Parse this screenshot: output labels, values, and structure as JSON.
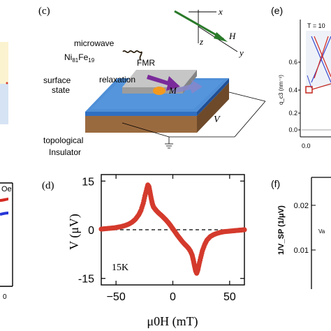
{
  "panel_c": {
    "label": "(c)",
    "microwave": "microwave",
    "ni_base": "Ni",
    "ni_sub1": "81",
    "fe_base": "Fe",
    "fe_sub": "19",
    "fmr": "FMR",
    "m": "M",
    "relaxation": "relaxation",
    "surface": "surface",
    "state": "state",
    "topological": "topological",
    "insulator": "Insulator",
    "x": "x",
    "y": "y",
    "z": "z",
    "h": "H",
    "v": "V"
  },
  "panel_e": {
    "label": "(e)",
    "temp": "T = 10",
    "ylabel": "q_c3 (nm⁻¹)",
    "yticks": [
      "0.6",
      "0.4",
      "0.2",
      "0.0"
    ],
    "xtick": "0.0"
  },
  "panel_f": {
    "label": "(f)",
    "ylabel": "1/V_SP (1/μV)",
    "yticks": [
      "0.02",
      "0.01"
    ],
    "inset": "Va"
  },
  "panel_left": {
    "oe": "Oe",
    "xtick": "0"
  },
  "panel_d": {
    "label": "(d)",
    "temperature": "15K",
    "ylabel": "V (μV)",
    "xlabel": "μ₀H (mT)",
    "marker_color": "#d43a2c"
  },
  "chart_data": {
    "type": "scatter",
    "title": "",
    "xlabel": "μ0H (mT)",
    "ylabel": "V (μV)",
    "xlim": [
      -63,
      63
    ],
    "ylim": [
      -17,
      17
    ],
    "xticks": [
      -50,
      0,
      50
    ],
    "yticks": [
      15,
      0,
      -15
    ],
    "grid": false,
    "reference_line": {
      "y": 0,
      "style": "dashed"
    },
    "series": [
      {
        "x": [
          -63,
          -60,
          -57,
          -54,
          -51,
          -48,
          -45,
          -42,
          -39,
          -36,
          -33,
          -30,
          -28,
          -26,
          -24.5,
          -23,
          -22,
          -21,
          -20,
          -19,
          -18,
          -17,
          -15.5,
          -14,
          -12,
          -10,
          -8,
          -6,
          -4,
          -2,
          0,
          2,
          4,
          6,
          8,
          10,
          12,
          14,
          15.5,
          17,
          18,
          19,
          20,
          21,
          22,
          23,
          24.5,
          26,
          28,
          30,
          33,
          36,
          39,
          42,
          45,
          48,
          51,
          54,
          57,
          60,
          63
        ],
        "y": [
          0.2,
          0.3,
          0.4,
          0.5,
          0.6,
          0.8,
          1.0,
          1.3,
          1.7,
          2.3,
          3.2,
          4.6,
          6.0,
          8.2,
          10.5,
          12.5,
          13.8,
          13.2,
          11.5,
          9.6,
          8.0,
          7.0,
          6.3,
          5.7,
          5.0,
          4.4,
          3.7,
          3.0,
          2.2,
          1.3,
          0.3,
          -0.7,
          -1.7,
          -2.6,
          -3.5,
          -4.3,
          -5.0,
          -5.8,
          -6.6,
          -7.8,
          -9.3,
          -11.0,
          -12.6,
          -13.4,
          -12.4,
          -10.8,
          -8.6,
          -6.5,
          -4.6,
          -3.2,
          -2.1,
          -1.5,
          -1.1,
          -0.8,
          -0.6,
          -0.5,
          -0.4,
          -0.3,
          -0.2,
          -0.1,
          0.0
        ]
      }
    ]
  }
}
